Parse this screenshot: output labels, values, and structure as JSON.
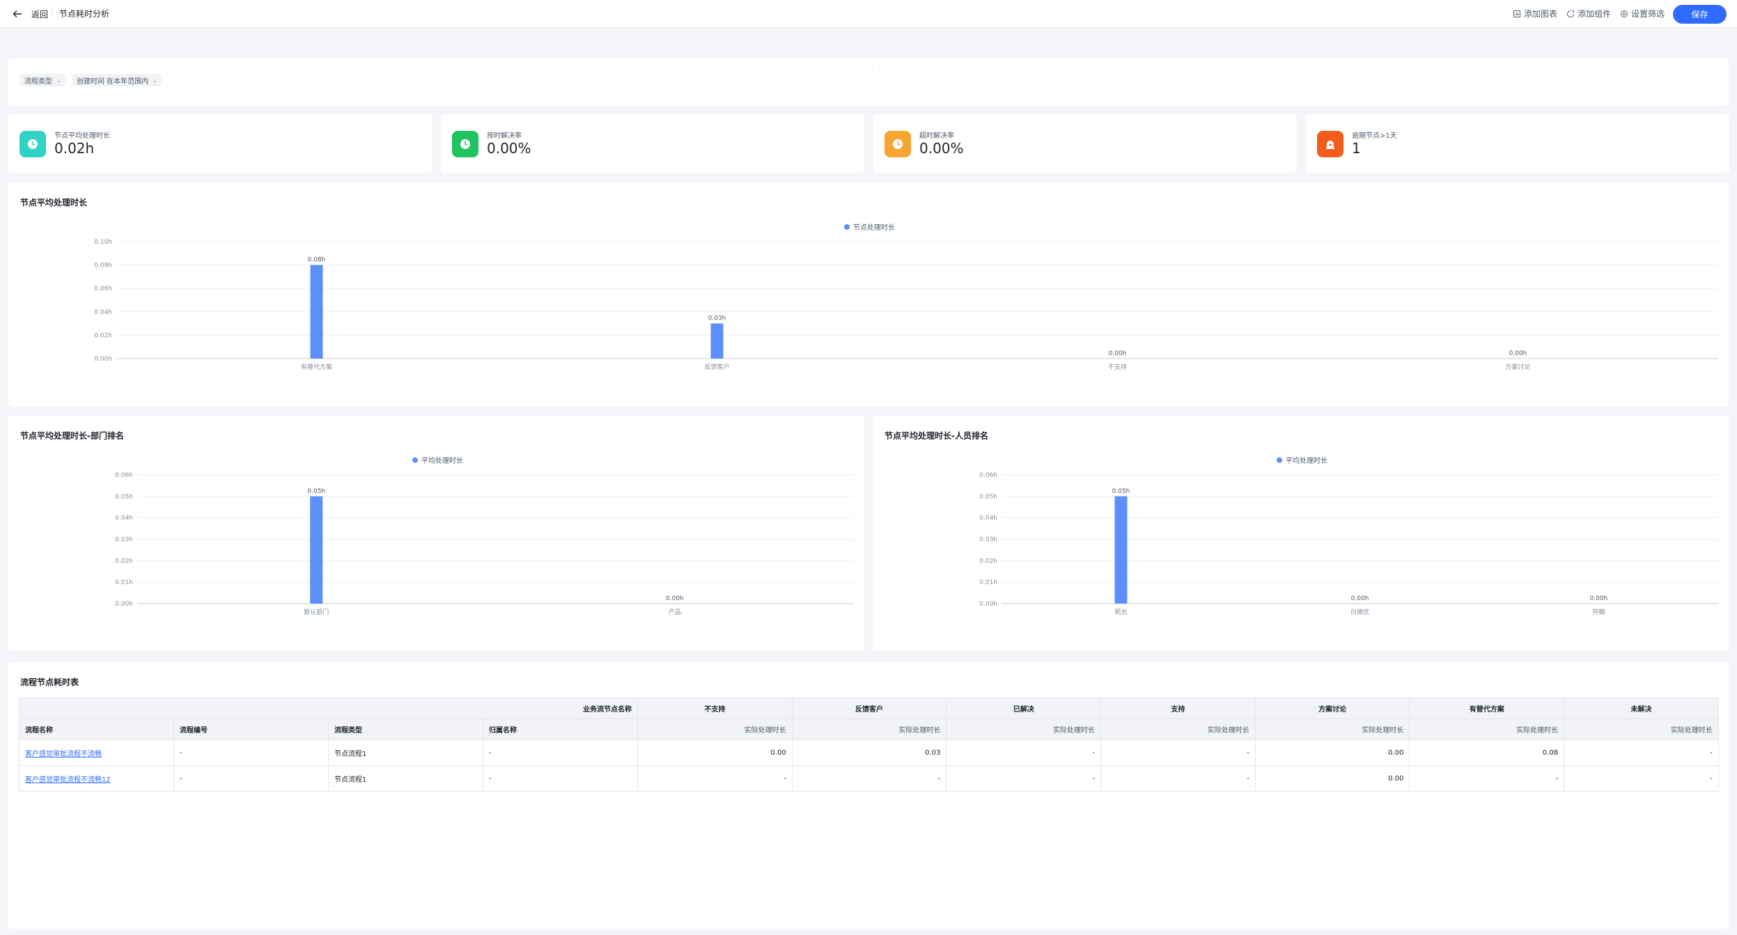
{
  "header": {
    "back_label": "返回",
    "title": "节点耗时分析",
    "add_chart": "添加图表",
    "add_component": "添加组件",
    "set_filter": "设置筛选",
    "save": "保存"
  },
  "filters": {
    "chip1": "流程类型",
    "chip2": "创建时间 在本年范围内"
  },
  "kpis": [
    {
      "label": "节点平均处理时长",
      "value": "0.02h",
      "color": "#2ed3c6",
      "icon": "clock-icon"
    },
    {
      "label": "按时解决率",
      "value": "0.00%",
      "color": "#1fc35f",
      "icon": "clock-icon"
    },
    {
      "label": "超时解决率",
      "value": "0.00%",
      "color": "#f7a531",
      "icon": "clock-icon"
    },
    {
      "label": "逾期节点>1天",
      "value": "1",
      "color": "#f25d1c",
      "icon": "alarm-icon"
    }
  ],
  "charts": {
    "main": {
      "title": "节点平均处理时长",
      "legend": "节点处理时长"
    },
    "dept": {
      "title": "节点平均处理时长-部门排名",
      "legend": "平均处理时长"
    },
    "person": {
      "title": "节点平均处理时长-人员排名",
      "legend": "平均处理时长"
    }
  },
  "chart_data": [
    {
      "type": "bar",
      "title": "节点平均处理时长",
      "categories": [
        "有替代方案",
        "反馈客户",
        "不支持",
        "方案讨论"
      ],
      "series": [
        {
          "name": "节点处理时长",
          "values": [
            0.08,
            0.03,
            0.0,
            0.0
          ]
        }
      ],
      "data_labels": [
        "0.08h",
        "0.03h",
        "0.00h",
        "0.00h"
      ],
      "yticks": [
        "0.00h",
        "0.02h",
        "0.04h",
        "0.06h",
        "0.08h",
        "0.10h"
      ],
      "ylim": [
        0,
        0.1
      ],
      "color": "#5b8ff9"
    },
    {
      "type": "bar",
      "title": "节点平均处理时长-部门排名",
      "categories": [
        "默认部门",
        "产品"
      ],
      "series": [
        {
          "name": "平均处理时长",
          "values": [
            0.05,
            0.0
          ]
        }
      ],
      "data_labels": [
        "0.05h",
        "0.00h"
      ],
      "yticks": [
        "0.00h",
        "0.01h",
        "0.02h",
        "0.03h",
        "0.04h",
        "0.05h",
        "0.06h"
      ],
      "ylim": [
        0,
        0.06
      ],
      "color": "#5b8ff9"
    },
    {
      "type": "bar",
      "title": "节点平均处理时长-人员排名",
      "categories": [
        "昵总",
        "白德优",
        "阿糖"
      ],
      "series": [
        {
          "name": "平均处理时长",
          "values": [
            0.05,
            0.0,
            0.0
          ]
        }
      ],
      "data_labels": [
        "0.05h",
        "0.00h",
        "0.00h"
      ],
      "yticks": [
        "0.00h",
        "0.01h",
        "0.02h",
        "0.03h",
        "0.04h",
        "0.05h",
        "0.06h"
      ],
      "ylim": [
        0,
        0.06
      ],
      "color": "#5b8ff9"
    }
  ],
  "table": {
    "title": "流程节点耗时表",
    "group_header": "业务流节点名称",
    "node_columns": [
      "不支持",
      "反馈客户",
      "已解决",
      "支持",
      "方案讨论",
      "有替代方案",
      "未解决"
    ],
    "left_columns": [
      "流程名称",
      "流程编号",
      "流程类型",
      "归属名称"
    ],
    "sub_header": "实际处理时长",
    "rows": [
      {
        "name": "客户感觉审批流程不流畅",
        "no": "-",
        "type": "节点流程1",
        "owner": "-",
        "values": [
          "0.00",
          "0.03",
          "-",
          "-",
          "0.00",
          "0.08",
          "-"
        ]
      },
      {
        "name": "客户感觉审批流程不流畅12",
        "no": "-",
        "type": "节点流程1",
        "owner": "-",
        "values": [
          "-",
          "-",
          "-",
          "-",
          "0.00",
          "-",
          "-"
        ]
      }
    ]
  }
}
